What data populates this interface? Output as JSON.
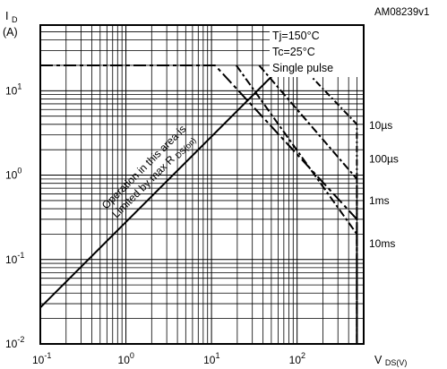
{
  "chart_data": {
    "type": "line",
    "figure_id": "AM08239v1",
    "ylabel": {
      "main": "I",
      "sub": "D",
      "unit": "(A)"
    },
    "xlabel": {
      "main": "V",
      "sub": "DS(V)"
    },
    "x_scale": "log",
    "y_scale": "log",
    "xlim": [
      0.1,
      600
    ],
    "ylim": [
      0.01,
      60
    ],
    "x_ticks": [
      {
        "base": "10",
        "exp": "-1",
        "value": 0.1
      },
      {
        "base": "10",
        "exp": "0",
        "value": 1
      },
      {
        "base": "10",
        "exp": "1",
        "value": 10
      },
      {
        "base": "10",
        "exp": "2",
        "value": 100
      }
    ],
    "y_ticks": [
      {
        "base": "10",
        "exp": "-2",
        "value": 0.01
      },
      {
        "base": "10",
        "exp": "-1",
        "value": 0.1
      },
      {
        "base": "10",
        "exp": "0",
        "value": 1
      },
      {
        "base": "10",
        "exp": "1",
        "value": 10
      }
    ],
    "grid": true,
    "conditions": [
      "Tj=150°C",
      "Tc=25°C",
      "Single pulse"
    ],
    "annotation": {
      "line1": "Operation in this area is",
      "line2_main": "Limited by max R",
      "line2_sub": "DS(on)"
    },
    "current_limit_A": 20,
    "voltage_limit_V": 500,
    "rds_on_limit": {
      "x": [
        0.1,
        68
      ],
      "y": [
        0.027,
        20
      ]
    },
    "series": [
      {
        "name": "10µs",
        "x": [
          68,
          110,
          500,
          500
        ],
        "y": [
          20,
          20,
          4.0,
          0.01
        ]
      },
      {
        "name": "100µs",
        "x": [
          36,
          500,
          500
        ],
        "y": [
          20,
          0.9,
          0.01
        ]
      },
      {
        "name": "1ms",
        "x": [
          19.5,
          500,
          500
        ],
        "y": [
          20,
          0.2,
          0.01
        ]
      },
      {
        "name": "10ms",
        "x": [
          0.1,
          11,
          500,
          500
        ],
        "y": [
          20,
          20,
          0.3,
          0.01
        ]
      }
    ],
    "curve_labels": [
      {
        "text": "10µs",
        "y": 3.9
      },
      {
        "text": "100µs",
        "y": 1.55
      },
      {
        "text": "1ms",
        "y": 0.5
      },
      {
        "text": "10ms",
        "y": 0.155
      }
    ]
  }
}
